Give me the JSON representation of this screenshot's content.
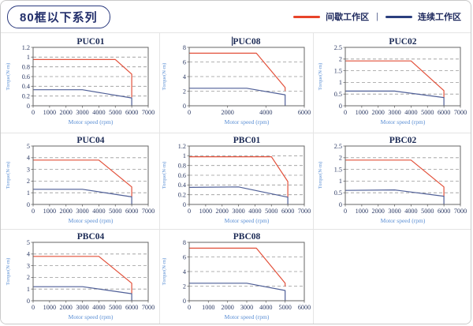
{
  "page": {
    "title_badge": "80框以下系列"
  },
  "legend": {
    "items": [
      {
        "label": "间歇工作区",
        "color": "#e8442a"
      },
      {
        "label": "连续工作区",
        "color": "#2b3f7e"
      }
    ],
    "separator": "|"
  },
  "chart_style": {
    "frame_color": "#666666",
    "grid_color": "#999999",
    "tick_color": "#2c3a64",
    "title_color": "#1b2a55",
    "axis_label_color": "#5b8fd4",
    "red": "#e2503a",
    "blue": "#4f5f97"
  },
  "chart_data": [
    {
      "type": "line",
      "title": "PUC01",
      "title_caret": false,
      "xlabel": "Motor speed (rpm)",
      "ylabel": "Torque(N·m)",
      "xlim": [
        0,
        7000
      ],
      "xticks": [
        0,
        1000,
        2000,
        3000,
        4000,
        5000,
        6000,
        7000
      ],
      "ylim": [
        0,
        1.2
      ],
      "yticks": [
        0,
        0.2,
        0.4,
        0.6,
        0.8,
        1,
        1.2
      ],
      "grid": "horizontal-dashed",
      "legend_position": "none",
      "series": [
        {
          "name": "间歇工作区",
          "color_key": "red",
          "points": [
            [
              0,
              0.95
            ],
            [
              5000,
              0.95
            ],
            [
              6000,
              0.65
            ],
            [
              6000,
              0.18
            ]
          ]
        },
        {
          "name": "连续工作区",
          "color_key": "blue",
          "points": [
            [
              0,
              0.33
            ],
            [
              3000,
              0.33
            ],
            [
              6000,
              0.16
            ],
            [
              6000,
              0
            ]
          ]
        }
      ]
    },
    {
      "type": "line",
      "title": "PUC08",
      "title_caret": true,
      "xlabel": "Motor speed (rpm)",
      "ylabel": "Torque(N·m)",
      "xlim": [
        0,
        6000
      ],
      "xticks": [
        0,
        2000,
        4000,
        6000
      ],
      "ylim": [
        0,
        8
      ],
      "yticks": [
        0,
        2,
        4,
        6,
        8
      ],
      "grid": "horizontal-dashed",
      "legend_position": "none",
      "series": [
        {
          "name": "间歇工作区",
          "color_key": "red",
          "points": [
            [
              0,
              7.2
            ],
            [
              3500,
              7.2
            ],
            [
              5000,
              2.5
            ],
            [
              5000,
              2.1
            ]
          ]
        },
        {
          "name": "连续工作区",
          "color_key": "blue",
          "points": [
            [
              0,
              2.4
            ],
            [
              3000,
              2.4
            ],
            [
              5000,
              1.5
            ],
            [
              5000,
              0
            ]
          ]
        }
      ]
    },
    {
      "type": "line",
      "title": "PUC02",
      "title_caret": false,
      "xlabel": "Motor speed (rpm)",
      "ylabel": "Torque(N·m)",
      "xlim": [
        0,
        7000
      ],
      "xticks": [
        0,
        1000,
        2000,
        3000,
        4000,
        5000,
        6000,
        7000
      ],
      "ylim": [
        0,
        2.5
      ],
      "yticks": [
        0,
        0.5,
        1,
        1.5,
        2,
        2.5
      ],
      "grid": "horizontal-dashed",
      "legend_position": "none",
      "series": [
        {
          "name": "间歇工作区",
          "color_key": "red",
          "points": [
            [
              0,
              1.92
            ],
            [
              4000,
              1.92
            ],
            [
              6000,
              0.65
            ],
            [
              6000,
              0.35
            ]
          ]
        },
        {
          "name": "连续工作区",
          "color_key": "blue",
          "points": [
            [
              0,
              0.63
            ],
            [
              3000,
              0.63
            ],
            [
              6000,
              0.35
            ],
            [
              6000,
              0
            ]
          ]
        }
      ]
    },
    {
      "type": "line",
      "title": "PUC04",
      "title_caret": false,
      "xlabel": "Motor speed (rpm)",
      "ylabel": "Torque(N·m)",
      "xlim": [
        0,
        7000
      ],
      "xticks": [
        0,
        1000,
        2000,
        3000,
        4000,
        5000,
        6000,
        7000
      ],
      "ylim": [
        0,
        5
      ],
      "yticks": [
        0,
        1,
        2,
        3,
        4,
        5
      ],
      "grid": "horizontal-dashed",
      "legend_position": "none",
      "series": [
        {
          "name": "间歇工作区",
          "color_key": "red",
          "points": [
            [
              0,
              3.8
            ],
            [
              4000,
              3.8
            ],
            [
              6000,
              1.5
            ],
            [
              6000,
              0.7
            ]
          ]
        },
        {
          "name": "连续工作区",
          "color_key": "blue",
          "points": [
            [
              0,
              1.3
            ],
            [
              3000,
              1.3
            ],
            [
              6000,
              0.65
            ],
            [
              6000,
              0
            ]
          ]
        }
      ]
    },
    {
      "type": "line",
      "title": "PBC01",
      "title_caret": false,
      "xlabel": "Motor speed (rpm)",
      "ylabel": "Torque(N·m)",
      "xlim": [
        0,
        7000
      ],
      "xticks": [
        0,
        1000,
        2000,
        3000,
        4000,
        5000,
        6000,
        7000
      ],
      "ylim": [
        0,
        1.2
      ],
      "yticks": [
        0,
        0.2,
        0.4,
        0.6,
        0.8,
        1,
        1.2
      ],
      "grid": "horizontal-dashed",
      "legend_position": "none",
      "series": [
        {
          "name": "间歇工作区",
          "color_key": "red",
          "points": [
            [
              0,
              0.98
            ],
            [
              5000,
              0.98
            ],
            [
              6000,
              0.47
            ],
            [
              6000,
              0.15
            ]
          ]
        },
        {
          "name": "连续工作区",
          "color_key": "blue",
          "points": [
            [
              0,
              0.35
            ],
            [
              3000,
              0.36
            ],
            [
              6000,
              0.15
            ],
            [
              6000,
              0
            ]
          ]
        }
      ]
    },
    {
      "type": "line",
      "title": "PBC02",
      "title_caret": false,
      "xlabel": "Motor speed (rpm)",
      "ylabel": "Torque(N·m)",
      "xlim": [
        0,
        7000
      ],
      "xticks": [
        0,
        1000,
        2000,
        3000,
        4000,
        5000,
        6000,
        7000
      ],
      "ylim": [
        0,
        2.5
      ],
      "yticks": [
        0,
        0.5,
        1,
        1.5,
        2,
        2.5
      ],
      "grid": "horizontal-dashed",
      "legend_position": "none",
      "series": [
        {
          "name": "间歇工作区",
          "color_key": "red",
          "points": [
            [
              0,
              1.9
            ],
            [
              4000,
              1.9
            ],
            [
              6000,
              0.75
            ],
            [
              6000,
              0.35
            ]
          ]
        },
        {
          "name": "连续工作区",
          "color_key": "blue",
          "points": [
            [
              0,
              0.6
            ],
            [
              3000,
              0.62
            ],
            [
              6000,
              0.35
            ],
            [
              6000,
              0
            ]
          ]
        }
      ]
    },
    {
      "type": "line",
      "title": "PBC04",
      "title_caret": false,
      "xlabel": "Motor speed (rpm)",
      "ylabel": "Torque(N·m)",
      "xlim": [
        0,
        7000
      ],
      "xticks": [
        0,
        1000,
        2000,
        3000,
        4000,
        5000,
        6000,
        7000
      ],
      "ylim": [
        0,
        5
      ],
      "yticks": [
        0,
        1,
        2,
        3,
        4,
        5
      ],
      "grid": "horizontal-dashed",
      "legend_position": "none",
      "series": [
        {
          "name": "间歇工作区",
          "color_key": "red",
          "points": [
            [
              0,
              3.8
            ],
            [
              4000,
              3.8
            ],
            [
              6000,
              1.5
            ],
            [
              6000,
              0.65
            ]
          ]
        },
        {
          "name": "连续工作区",
          "color_key": "blue",
          "points": [
            [
              0,
              1.2
            ],
            [
              3000,
              1.2
            ],
            [
              6000,
              0.6
            ],
            [
              6000,
              0
            ]
          ]
        }
      ]
    },
    {
      "type": "line",
      "title": "PBC08",
      "title_caret": false,
      "xlabel": "Motor speed (rpm)",
      "ylabel": "Torque(N·m)",
      "xlim": [
        0,
        6000
      ],
      "xticks": [
        0,
        1000,
        2000,
        3000,
        4000,
        5000,
        6000
      ],
      "ylim": [
        0,
        8
      ],
      "yticks": [
        0,
        2,
        4,
        6,
        8
      ],
      "grid": "horizontal-dashed",
      "legend_position": "none",
      "series": [
        {
          "name": "间歇工作区",
          "color_key": "red",
          "points": [
            [
              0,
              7.2
            ],
            [
              3500,
              7.2
            ],
            [
              5000,
              2.4
            ],
            [
              5000,
              2.0
            ]
          ]
        },
        {
          "name": "连续工作区",
          "color_key": "blue",
          "points": [
            [
              0,
              2.4
            ],
            [
              3000,
              2.4
            ],
            [
              5000,
              1.4
            ],
            [
              5000,
              0
            ]
          ]
        }
      ]
    }
  ]
}
